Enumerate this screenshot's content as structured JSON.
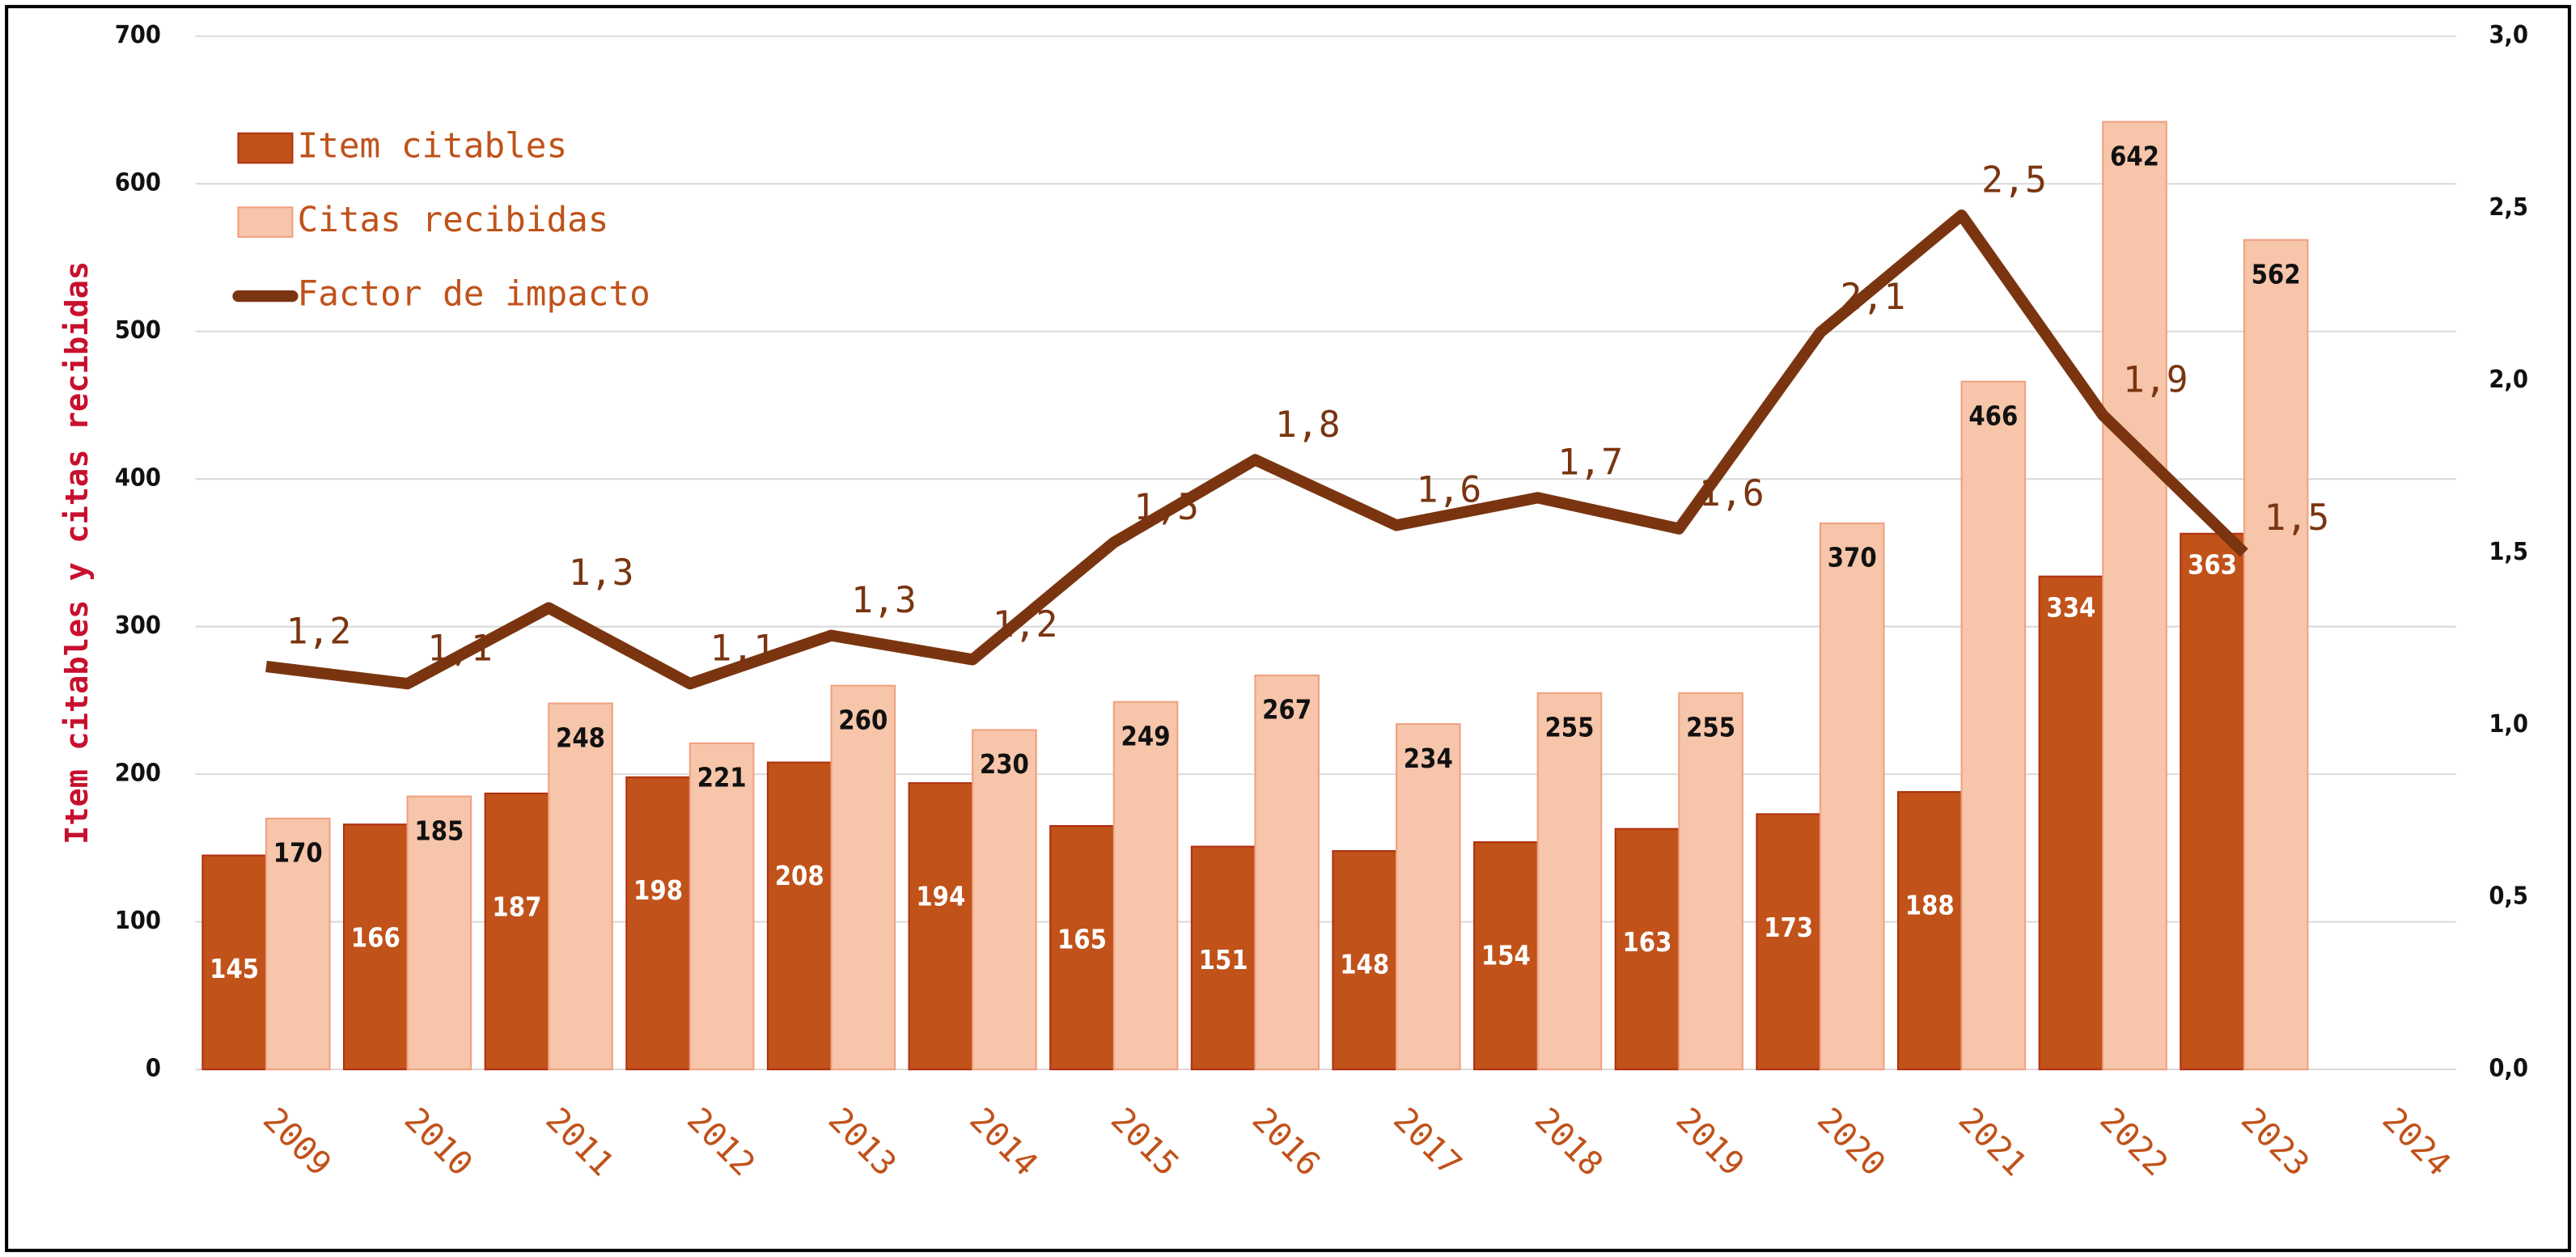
{
  "chart_data": {
    "type": "bar_line",
    "y_label": "Item citables y citas recibidas",
    "categories": [
      "2009",
      "2010",
      "2011",
      "2012",
      "2013",
      "2014",
      "2015",
      "2016",
      "2017",
      "2018",
      "2019",
      "2020",
      "2021",
      "2022",
      "2023",
      "2024"
    ],
    "series": [
      {
        "name": "Item citables",
        "type": "bar",
        "color": "#c0521a",
        "values": [
          145,
          166,
          187,
          198,
          208,
          194,
          165,
          151,
          148,
          154,
          163,
          173,
          188,
          334,
          363,
          null
        ]
      },
      {
        "name": "Citas recibidas",
        "type": "bar",
        "color": "#f6c5aa",
        "values": [
          170,
          185,
          248,
          221,
          260,
          230,
          249,
          267,
          234,
          255,
          255,
          370,
          466,
          642,
          562,
          null
        ]
      },
      {
        "name": "Factor de impacto",
        "type": "line",
        "axis": "y2",
        "color": "#7a3510",
        "values": [
          1.17,
          1.12,
          1.34,
          1.12,
          1.26,
          1.19,
          1.53,
          1.77,
          1.58,
          1.66,
          1.57,
          2.14,
          2.48,
          1.9,
          1.5,
          null
        ],
        "value_labels": [
          "1,2",
          "1,1",
          "1,3",
          "1,1",
          "1,3",
          "1,2",
          "1,5",
          "1,8",
          "1,6",
          "1,7",
          "1,6",
          "2,1",
          "2,5",
          "1,9",
          "1,5",
          null
        ]
      }
    ],
    "ylim": [
      0,
      700
    ],
    "yticks": [
      0,
      100,
      200,
      300,
      400,
      500,
      600,
      700
    ],
    "y2lim": [
      0,
      3
    ],
    "y2ticks": [
      {
        "value": 0,
        "label": "0,0"
      },
      {
        "value": 0.5,
        "label": "0,5"
      },
      {
        "value": 1,
        "label": "1,0"
      },
      {
        "value": 1.5,
        "label": "1,5"
      },
      {
        "value": 2,
        "label": "2,0"
      },
      {
        "value": 2.5,
        "label": "2,5"
      },
      {
        "value": 3,
        "label": "3,0"
      }
    ],
    "grid": true,
    "legend": "top-left"
  }
}
